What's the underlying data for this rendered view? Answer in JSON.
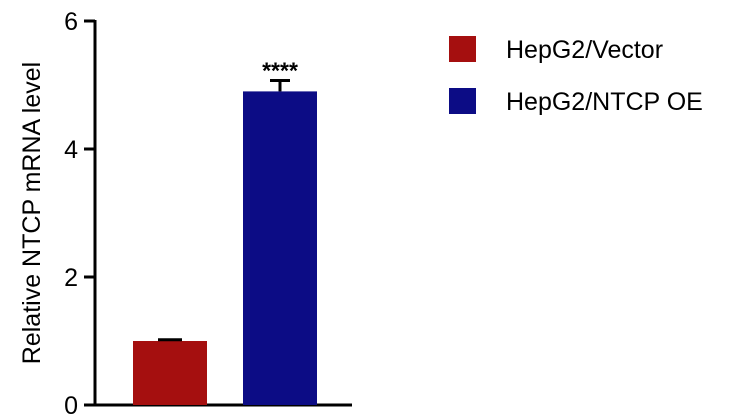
{
  "chart_data": {
    "type": "bar",
    "title": "",
    "xlabel": "",
    "ylabel": "Relative NTCP mRNA level",
    "ylim": [
      0,
      6
    ],
    "yticks": [
      0,
      2,
      4,
      6
    ],
    "grid": false,
    "legend_position": "right",
    "series": [
      {
        "name": "HepG2/Vector",
        "value": 1.0,
        "error": 0.02,
        "color": "#A50F0F"
      },
      {
        "name": "HepG2/NTCP OE",
        "value": 4.9,
        "error": 0.17,
        "color": "#0C0C85"
      }
    ],
    "annotations": [
      {
        "series": "HepG2/NTCP OE",
        "text": "****"
      }
    ]
  }
}
